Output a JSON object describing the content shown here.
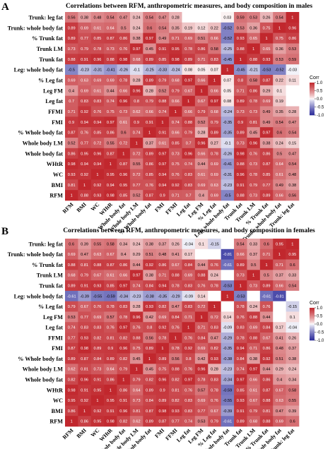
{
  "chart_data": [
    {
      "type": "heatmap",
      "panel": "A",
      "title": "Correlations between RFM, anthropometric measures, and body composition in males",
      "rows": [
        "Trunk: leg fat",
        "Trunk: whole body fat",
        "% Trunk fat",
        "Trunk LM",
        "Trunk fat",
        "Leg: whole body fat",
        "% Leg fat",
        "Leg FM",
        "Leg fat",
        "FFMI",
        "FMI",
        "% Whole body fat",
        "Whole body LM",
        "Whole body fat",
        "WHtR",
        "WC",
        "BMI",
        "RFM"
      ],
      "cols": [
        "RFM",
        "BMI",
        "WC",
        "WHtR",
        "Whole body fat",
        "Whole body LM",
        "% Whole body fat",
        "FMI",
        "FFMI",
        "Leg fat",
        "Leg FM",
        "% Leg fat",
        "Leg: whole body fat",
        "Trunk fat",
        "Trunk LM",
        "% Trunk fat",
        "Trunk: whole body fat",
        "Trunk: leg fat"
      ],
      "values": [
        [
          "0.56",
          "0.38",
          "0.48",
          "0.54",
          "0.47",
          "0.24",
          "0.54",
          "0.47",
          "0.28",
          "",
          "",
          "",
          "0.03",
          "0.59",
          "0.53",
          "0.26",
          "0.54",
          "1"
        ],
        [
          "0.89",
          "0.69",
          "0.61",
          "0.64",
          "0.5",
          "0.24",
          "0.6",
          "0.54",
          "0.35",
          "0.19",
          "0.12",
          "0.22",
          "-0.52",
          "0.53",
          "0.36",
          "0.75",
          "1",
          "0.96"
        ],
        [
          "0.89",
          "0.77",
          "0.85",
          "0.87",
          "0.86",
          "0.38",
          "0.97",
          "0.49",
          "0.71",
          "0.69",
          "0.51",
          "0.66",
          "-0.52",
          "0.93",
          "0.65",
          "1",
          "0.75",
          "0.86"
        ],
        [
          "0.73",
          "0.79",
          "0.78",
          "0.73",
          "0.76",
          "0.97",
          "0.45",
          "0.91",
          "0.95",
          "0.78",
          "0.86",
          "0.58",
          "-0.25",
          "0.88",
          "1",
          "0.65",
          "0.36",
          "0.53"
        ],
        [
          "0.88",
          "0.91",
          "0.96",
          "0.88",
          "0.98",
          "0.68",
          "0.89",
          "0.85",
          "0.98",
          "0.89",
          "0.71",
          "0.83",
          "-0.45",
          "1",
          "0.88",
          "0.93",
          "0.53",
          "0.59"
        ],
        [
          "-0.5",
          "-0.23",
          "-0.31",
          "-0.41",
          "-0.26",
          "-0.1",
          "-0.25",
          "-0.33",
          "-0.24",
          "0.08",
          "0.05",
          "0.07",
          "1",
          "-0.45",
          "-0.21",
          "-0.53",
          "-0.52",
          "-0.03"
        ],
        [
          "0.69",
          "0.63",
          "0.69",
          "0.69",
          "0.78",
          "0.28",
          "0.89",
          "0.79",
          "0.68",
          "0.97",
          "0.66",
          "1",
          "0.07",
          "0.8",
          "0.58",
          "0.87",
          "0.22",
          "0.11"
        ],
        [
          "0.4",
          "0.69",
          "0.61",
          "0.44",
          "0.66",
          "0.96",
          "0.28",
          "0.52",
          "0.79",
          "0.67",
          "1",
          "0.66",
          "0.05",
          "0.71",
          "0.86",
          "0.29",
          "0.1",
          ""
        ],
        [
          "0.7",
          "0.83",
          "0.83",
          "0.74",
          "0.96",
          "0.8",
          "0.79",
          "0.88",
          "0.66",
          "1",
          "0.67",
          "0.97",
          "0.08",
          "0.89",
          "0.78",
          "0.69",
          "0.19",
          ""
        ],
        [
          "0.71",
          "0.92",
          "0.76",
          "0.75",
          "0.73",
          "0.62",
          "0.66",
          "0.74",
          "1",
          "0.66",
          "0.79",
          "0.68",
          "-0.24",
          "0.73",
          "0.73",
          "0.49",
          "0.35",
          "0.28"
        ],
        [
          "0.9",
          "0.94",
          "0.94",
          "0.97",
          "0.61",
          "0.9",
          "0.91",
          "1",
          "0.74",
          "0.88",
          "0.52",
          "0.79",
          "-0.35",
          "0.9",
          "0.81",
          "0.49",
          "0.54",
          "0.47"
        ],
        [
          "0.87",
          "0.76",
          "0.85",
          "0.86",
          "0.6",
          "0.74",
          "1",
          "0.91",
          "0.66",
          "0.79",
          "0.28",
          "0.89",
          "-0.35",
          "0.89",
          "0.45",
          "0.97",
          "0.6",
          "0.54"
        ],
        [
          "0.52",
          "0.77",
          "0.72",
          "0.55",
          "0.72",
          "1",
          "0.37",
          "0.61",
          "0.85",
          "0.7",
          "0.96",
          "0.27",
          "-0.1",
          "0.73",
          "0.96",
          "0.38",
          "0.24",
          "0.15"
        ],
        [
          "0.86",
          "0.95",
          "0.96",
          "0.87",
          "1",
          "0.72",
          "0.89",
          "0.97",
          "0.73",
          "0.96",
          "0.66",
          "0.78",
          "-0.26",
          "0.98",
          "0.76",
          "0.86",
          "0.5",
          "0.47"
        ],
        [
          "0.98",
          "0.94",
          "0.94",
          "1",
          "0.87",
          "0.55",
          "0.86",
          "0.97",
          "0.75",
          "0.74",
          "0.44",
          "0.69",
          "-0.41",
          "0.88",
          "0.73",
          "0.87",
          "0.64",
          "0.54"
        ],
        [
          "0.93",
          "0.92",
          "1",
          "0.95",
          "0.96",
          "0.72",
          "0.85",
          "0.94",
          "0.76",
          "0.83",
          "0.61",
          "0.69",
          "-0.31",
          "0.96",
          "0.78",
          "0.85",
          "0.61",
          "0.48"
        ],
        [
          "0.81",
          "1",
          "0.92",
          "0.94",
          "0.95",
          "0.77",
          "0.76",
          "0.94",
          "0.92",
          "0.83",
          "0.69",
          "0.63",
          "-0.23",
          "0.91",
          "0.79",
          "0.77",
          "0.49",
          "0.38"
        ],
        [
          "1",
          "0.88",
          "0.93",
          "0.98",
          "0.85",
          "0.52",
          "0.87",
          "0.9",
          "0.71",
          "0.7",
          "0.4",
          "0.69",
          "-0.5",
          "0.88",
          "0.73",
          "0.89",
          "0.66",
          "0.56"
        ]
      ],
      "legend": {
        "title": "Corr",
        "ticks": [
          "1.0",
          "0.5",
          "0.0",
          "-0.5",
          "-1.0"
        ]
      },
      "colors": {
        "positive": "#c1272d",
        "neutral": "#ffffff",
        "negative": "#2b2b9a"
      }
    },
    {
      "type": "heatmap",
      "panel": "B",
      "title": "Correlations between RFM, anthropometric measures, and body composition in females",
      "rows": [
        "Trunk: leg fat",
        "Trunk: whole body fat",
        "% Trunk fat",
        "Trunk LM",
        "Trunk fat",
        "Leg: whole body fat",
        "% Leg fat",
        "Leg FM",
        "Leg fat",
        "FFMI",
        "FMI",
        "% Whole body fat",
        "Whole body LM",
        "Whole body fat",
        "WHtR",
        "WC",
        "BMI",
        "RFM"
      ],
      "cols": [
        "RFM",
        "BMI",
        "WC",
        "WHtR",
        "Whole body fat",
        "Whole body LM",
        "% Whole body fat",
        "FMI",
        "FFMI",
        "Leg fat",
        "Leg FM",
        "% Leg fat",
        "Leg: whole body fat",
        "Trunk fat",
        "Trunk LM",
        "% Trunk fat",
        "Trunk: whole body fat",
        "Trunk: leg fat"
      ],
      "values": [
        [
          "0.6",
          "0.39",
          "0.55",
          "0.58",
          "0.34",
          "0.24",
          "0.38",
          "0.37",
          "0.26",
          "-0.04",
          "0.1",
          "-0.15",
          "",
          "0.54",
          "0.33",
          "0.6",
          "0.95",
          "1"
        ],
        [
          "0.69",
          "0.47",
          "0.63",
          "0.67",
          "0.4",
          "0.29",
          "0.51",
          "0.48",
          "0.41",
          "0.17",
          "",
          "",
          "-0.81",
          "0.66",
          "0.37",
          "0.71",
          "1",
          "0.95"
        ],
        [
          "0.88",
          "0.81",
          "0.88",
          "0.87",
          "0.86",
          "0.44",
          "0.92",
          "0.86",
          "0.67",
          "0.84",
          "0.44",
          "0.76",
          "-0.61",
          "0.89",
          "0.5",
          "1",
          "0.71",
          "0.6"
        ],
        [
          "0.68",
          "0.79",
          "0.67",
          "0.61",
          "0.66",
          "0.97",
          "0.38",
          "0.71",
          "0.88",
          "0.69",
          "0.88",
          "0.24",
          "",
          "0.73",
          "1",
          "0.5",
          "0.37",
          "0.33"
        ],
        [
          "0.89",
          "0.91",
          "0.93",
          "0.85",
          "0.97",
          "0.74",
          "0.84",
          "0.94",
          "0.78",
          "0.83",
          "0.76",
          "0.78",
          "-0.53",
          "1",
          "0.73",
          "0.89",
          "0.66",
          "0.54"
        ],
        [
          "-0.61",
          "-0.39",
          "-0.55",
          "-0.59",
          "-0.34",
          "-0.23",
          "-0.38",
          "-0.35",
          "-0.29",
          "-0.09",
          "0.14",
          "",
          "1",
          "-0.53",
          "",
          "-0.61",
          "-0.81",
          ""
        ],
        [
          "0.79",
          "0.67",
          "0.76",
          "0.78",
          "0.83",
          "0.28",
          "0.93",
          "0.82",
          "0.47",
          "0.83",
          "0.72",
          "1",
          "",
          "0.78",
          "0.24",
          "0.76",
          "",
          "-0.15"
        ],
        [
          "0.53",
          "0.77",
          "0.69",
          "0.57",
          "0.78",
          "0.96",
          "0.42",
          "0.69",
          "0.84",
          "0.71",
          "1",
          "0.72",
          "0.14",
          "0.76",
          "0.88",
          "0.44",
          "",
          "0.1"
        ],
        [
          "0.74",
          "0.83",
          "0.83",
          "0.76",
          "0.97",
          "0.76",
          "0.8",
          "0.92",
          "0.76",
          "1",
          "0.71",
          "0.83",
          "-0.09",
          "0.83",
          "0.69",
          "0.84",
          "0.17",
          "-0.04"
        ],
        [
          "0.77",
          "0.93",
          "0.82",
          "0.81",
          "0.82",
          "0.88",
          "0.56",
          "0.78",
          "1",
          "0.76",
          "0.84",
          "0.47",
          "-0.29",
          "0.78",
          "0.88",
          "0.67",
          "0.41",
          "0.26"
        ],
        [
          "0.87",
          "0.98",
          "0.89",
          "0.9",
          "0.96",
          "0.75",
          "0.89",
          "1",
          "0.78",
          "0.92",
          "0.69",
          "0.82",
          "-0.35",
          "0.94",
          "0.71",
          "0.86",
          "0.48",
          "0.37"
        ],
        [
          "0.89",
          "0.87",
          "0.84",
          "0.89",
          "0.82",
          "0.45",
          "1",
          "0.89",
          "0.56",
          "0.8",
          "0.42",
          "0.93",
          "-0.38",
          "0.84",
          "0.38",
          "0.92",
          "0.51",
          "0.38"
        ],
        [
          "0.62",
          "0.81",
          "0.73",
          "0.64",
          "0.79",
          "1",
          "0.45",
          "0.75",
          "0.88",
          "0.76",
          "0.96",
          "0.28",
          "-0.23",
          "0.74",
          "0.97",
          "0.44",
          "0.29",
          "0.24"
        ],
        [
          "0.82",
          "0.96",
          "0.91",
          "0.86",
          "1",
          "0.79",
          "0.82",
          "0.96",
          "0.82",
          "0.97",
          "0.78",
          "0.83",
          "-0.34",
          "0.97",
          "0.66",
          "0.86",
          "0.4",
          "0.34"
        ],
        [
          "0.98",
          "0.91",
          "0.95",
          "1",
          "0.86",
          "0.64",
          "0.89",
          "0.9",
          "0.81",
          "0.76",
          "0.57",
          "0.78",
          "-0.59",
          "0.85",
          "0.61",
          "0.87",
          "0.67",
          "0.58"
        ],
        [
          "0.95",
          "0.92",
          "1",
          "0.95",
          "0.91",
          "0.73",
          "0.84",
          "0.89",
          "0.82",
          "0.83",
          "0.69",
          "0.76",
          "-0.55",
          "0.93",
          "0.67",
          "0.88",
          "0.63",
          "0.55"
        ],
        [
          "0.86",
          "1",
          "0.92",
          "0.91",
          "0.96",
          "0.81",
          "0.87",
          "0.98",
          "0.93",
          "0.83",
          "0.77",
          "0.67",
          "-0.39",
          "0.91",
          "0.79",
          "0.81",
          "0.47",
          "0.39"
        ],
        [
          "1",
          "0.86",
          "0.95",
          "0.98",
          "0.82",
          "0.62",
          "0.89",
          "0.87",
          "0.77",
          "0.74",
          "0.53",
          "0.79",
          "-0.61",
          "0.89",
          "0.68",
          "0.88",
          "0.69",
          "0.6"
        ]
      ],
      "legend": {
        "title": "Corr",
        "ticks": [
          "1.0",
          "0.5",
          "0.0",
          "-0.5",
          "-1.0"
        ]
      },
      "colors": {
        "positive": "#c1272d",
        "neutral": "#ffffff",
        "negative": "#2b2b9a"
      }
    }
  ]
}
